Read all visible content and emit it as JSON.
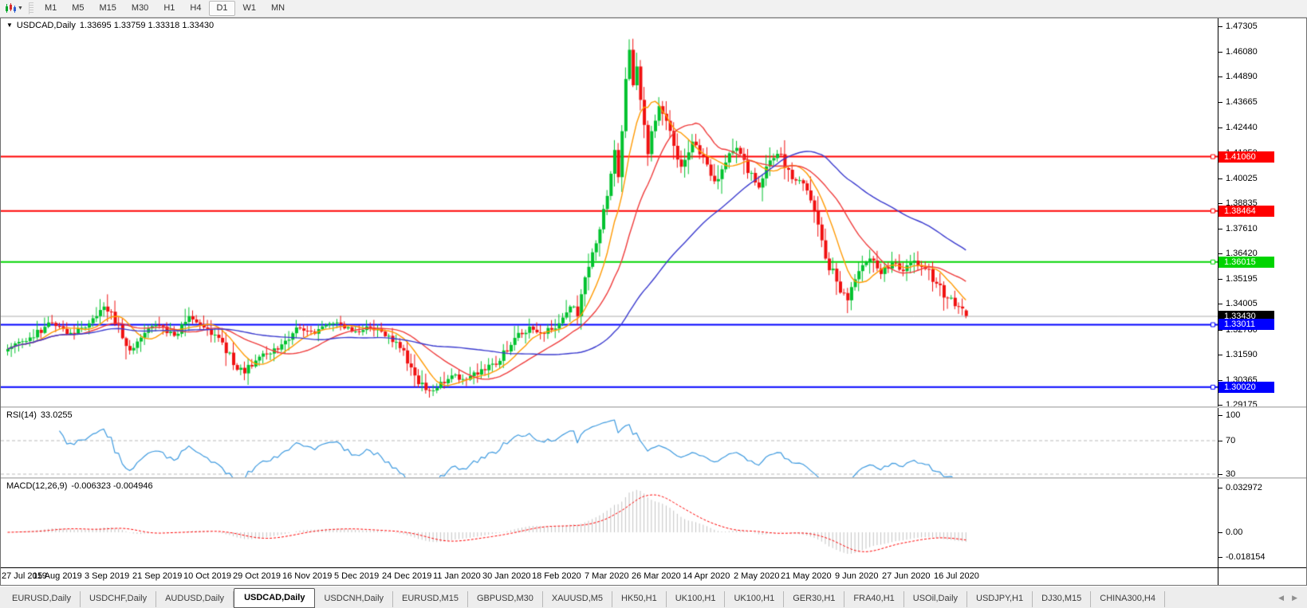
{
  "header": {
    "chart_icon": "candlestick-chart-icon",
    "timeframes": [
      "M1",
      "M5",
      "M15",
      "M30",
      "H1",
      "H4",
      "D1",
      "W1",
      "MN"
    ],
    "active_timeframe": "D1"
  },
  "chart": {
    "symbol_label": "USDCAD,Daily",
    "ohlc_label": "1.33695 1.33759 1.33318 1.33430",
    "collapse_icon": "▼"
  },
  "indicators": {
    "rsi": {
      "name": "RSI(14)",
      "value": "33.0255"
    },
    "macd": {
      "name": "MACD(12,26,9)",
      "value": "-0.006323 -0.004946"
    }
  },
  "price_scale": {
    "ticks": [
      "1.47305",
      "1.46080",
      "1.44890",
      "1.43665",
      "1.42440",
      "1.41250",
      "1.40025",
      "1.38835",
      "1.37610",
      "1.36420",
      "1.35195",
      "1.34005",
      "1.32780",
      "1.31590",
      "1.30365",
      "1.29175"
    ],
    "colored_labels": [
      {
        "text": "1.41060",
        "price": 1.4106,
        "bg": "#ff0000"
      },
      {
        "text": "1.38464",
        "price": 1.38464,
        "bg": "#ff0000"
      },
      {
        "text": "1.36015",
        "price": 1.36015,
        "bg": "#00d400"
      },
      {
        "text": "1.33430",
        "price": 1.3343,
        "bg": "#000000"
      },
      {
        "text": "1.33011",
        "price": 1.33011,
        "bg": "#0000ff"
      },
      {
        "text": "1.30020",
        "price": 1.3002,
        "bg": "#0000ff"
      }
    ]
  },
  "rsi_scale": [
    {
      "text": "100",
      "value": 100
    },
    {
      "text": "70",
      "value": 70
    },
    {
      "text": "30",
      "value": 30
    }
  ],
  "macd_scale": [
    {
      "text": "0.032972",
      "value": 0.032972
    },
    {
      "text": "0.00",
      "value": 0
    },
    {
      "text": "-0.018154",
      "value": -0.018154
    }
  ],
  "date_axis": [
    "27 Jul 2019",
    "15 Aug 2019",
    "3 Sep 2019",
    "21 Sep 2019",
    "10 Oct 2019",
    "29 Oct 2019",
    "16 Nov 2019",
    "5 Dec 2019",
    "24 Dec 2019",
    "11 Jan 2020",
    "30 Jan 2020",
    "18 Feb 2020",
    "7 Mar 2020",
    "26 Mar 2020",
    "14 Apr 2020",
    "2 May 2020",
    "21 May 2020",
    "9 Jun 2020",
    "27 Jun 2020",
    "16 Jul 2020"
  ],
  "tabs": {
    "items": [
      "EURUSD,Daily",
      "USDCHF,Daily",
      "AUDUSD,Daily",
      "USDCAD,Daily",
      "USDCNH,Daily",
      "EURUSD,M15",
      "GBPUSD,M30",
      "XAUUSD,M5",
      "HK50,H1",
      "UK100,H1",
      "UK100,H1",
      "GER30,H1",
      "FRA40,H1",
      "USOil,Daily",
      "USDJPY,H1",
      "DJ30,M15",
      "CHINA300,H4"
    ],
    "active_index": 3,
    "scroll_left_icon": "◀",
    "scroll_right_icon": "▶"
  },
  "colors": {
    "candle_up": "#00c22e",
    "candle_down": "#f01010",
    "ma_fast": "#ff9900",
    "ma_mid": "#ef3c3c",
    "ma_slow": "#3a3ace",
    "rsi_line": "#3e9adf",
    "rsi_level": "#b8b8b8",
    "macd_hist": "#c2c2c2",
    "macd_signal": "#ff0000",
    "last_price_line": "#ababab"
  },
  "chart_data": {
    "type": "candlestick",
    "symbol": "USDCAD",
    "timeframe": "Daily",
    "bars": 260,
    "y_axis": {
      "max": 1.47305,
      "min": 1.29175
    },
    "current_bar": {
      "open": 1.33695,
      "high": 1.33759,
      "low": 1.33318,
      "close": 1.3343
    },
    "extremes": {
      "peak_high": 1.4668,
      "trough_low": 1.2952,
      "spike_bar": 227,
      "spike_low": 1.3385
    },
    "hlines": [
      {
        "price": 1.4106,
        "color": "#ff0000"
      },
      {
        "price": 1.38464,
        "color": "#ff0000"
      },
      {
        "price": 1.36015,
        "color": "#00d400"
      },
      {
        "price": 1.33011,
        "color": "#0000ff"
      },
      {
        "price": 1.3002,
        "color": "#0000ff"
      }
    ],
    "last_price": 1.3343,
    "moving_averages": [
      {
        "period": 9,
        "color": "#ff9900"
      },
      {
        "period": 21,
        "color": "#ef3c3c"
      },
      {
        "period": 55,
        "color": "#3a3ace"
      }
    ],
    "rsi": {
      "period": 14,
      "current": 33.0255,
      "levels": [
        70,
        30
      ]
    },
    "macd": {
      "fast": 12,
      "slow": 26,
      "signal": 9,
      "current_macd": -0.006323,
      "current_signal": -0.004946
    },
    "anchors": [
      [
        0,
        1.3185
      ],
      [
        6,
        1.324
      ],
      [
        12,
        1.331
      ],
      [
        17,
        1.3262
      ],
      [
        22,
        1.3308
      ],
      [
        26,
        1.3388
      ],
      [
        30,
        1.33
      ],
      [
        33,
        1.3178
      ],
      [
        37,
        1.3262
      ],
      [
        41,
        1.3298
      ],
      [
        45,
        1.3248
      ],
      [
        49,
        1.3342
      ],
      [
        53,
        1.3288
      ],
      [
        57,
        1.3238
      ],
      [
        61,
        1.3108
      ],
      [
        64,
        1.3068
      ],
      [
        68,
        1.3148
      ],
      [
        73,
        1.3182
      ],
      [
        78,
        1.3288
      ],
      [
        83,
        1.3258
      ],
      [
        88,
        1.3308
      ],
      [
        93,
        1.3268
      ],
      [
        98,
        1.3288
      ],
      [
        103,
        1.3248
      ],
      [
        107,
        1.3178
      ],
      [
        110,
        1.3058
      ],
      [
        113,
        1.2988
      ],
      [
        116,
        1.2998
      ],
      [
        120,
        1.3058
      ],
      [
        124,
        1.3038
      ],
      [
        128,
        1.3088
      ],
      [
        133,
        1.3128
      ],
      [
        137,
        1.3238
      ],
      [
        141,
        1.3292
      ],
      [
        145,
        1.3258
      ],
      [
        149,
        1.3308
      ],
      [
        152,
        1.3388
      ],
      [
        154,
        1.3342
      ],
      [
        156,
        1.3528
      ],
      [
        158,
        1.3648
      ],
      [
        160,
        1.3758
      ],
      [
        162,
        1.3918
      ],
      [
        164,
        1.4138
      ],
      [
        165,
        1.4008
      ],
      [
        166,
        1.4228
      ],
      [
        167,
        1.4478
      ],
      [
        168,
        1.4618
      ],
      [
        169,
        1.4448
      ],
      [
        170,
        1.4538
      ],
      [
        171,
        1.4378
      ],
      [
        172,
        1.4258
      ],
      [
        173,
        1.4118
      ],
      [
        174,
        1.4228
      ],
      [
        176,
        1.4348
      ],
      [
        178,
        1.4278
      ],
      [
        180,
        1.4158
      ],
      [
        182,
        1.4058
      ],
      [
        185,
        1.4178
      ],
      [
        188,
        1.4108
      ],
      [
        191,
        1.3988
      ],
      [
        194,
        1.4078
      ],
      [
        197,
        1.4148
      ],
      [
        200,
        1.4028
      ],
      [
        203,
        1.3958
      ],
      [
        206,
        1.4088
      ],
      [
        209,
        1.4118
      ],
      [
        212,
        1.3998
      ],
      [
        215,
        1.3978
      ],
      [
        218,
        1.3848
      ],
      [
        221,
        1.3618
      ],
      [
        224,
        1.3508
      ],
      [
        227,
        1.3418
      ],
      [
        230,
        1.3558
      ],
      [
        233,
        1.3618
      ],
      [
        236,
        1.3544
      ],
      [
        239,
        1.3598
      ],
      [
        242,
        1.3558
      ],
      [
        245,
        1.3608
      ],
      [
        248,
        1.3568
      ],
      [
        251,
        1.3498
      ],
      [
        254,
        1.3428
      ],
      [
        257,
        1.3388
      ],
      [
        259,
        1.3343
      ]
    ]
  }
}
